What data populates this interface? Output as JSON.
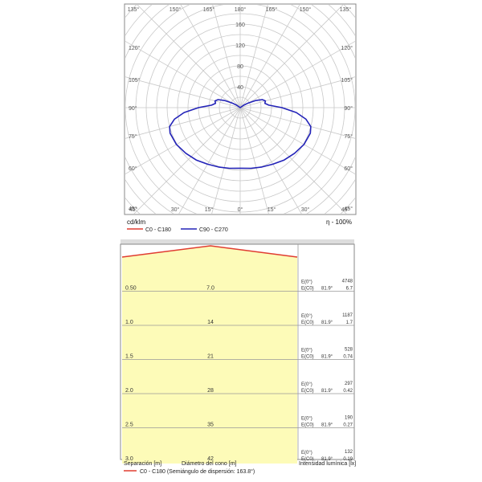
{
  "chart_data": [
    {
      "type": "polar",
      "unit_label": "cd/klm",
      "efficiency_label": "η - 100%",
      "angle_labels_top": [
        "135°",
        "150°",
        "165°",
        "180°",
        "165°",
        "150°",
        "135°"
      ],
      "angle_labels_left": [
        "120°",
        "105°",
        "90°",
        "75°",
        "60°",
        "45°"
      ],
      "angle_labels_right": [
        "120°",
        "105°",
        "90°",
        "75°",
        "60°",
        "45°"
      ],
      "angle_labels_bottom": [
        "45°",
        "30°",
        "15°",
        "0°",
        "15°",
        "30°",
        "45°"
      ],
      "radial_ticks": [
        40,
        80,
        120,
        160
      ],
      "radial_max": 200,
      "radial_tick_labels": [
        "160",
        "120",
        "80",
        "40"
      ],
      "series": [
        {
          "name": "C0 - C180",
          "color": "#e03c31",
          "angles": [
            0,
            10,
            20,
            30,
            40,
            50,
            60,
            70,
            80,
            85,
            90,
            95,
            100,
            105,
            110,
            115,
            120,
            130,
            140,
            150,
            160,
            170,
            180
          ],
          "values": [
            0,
            0,
            0,
            0,
            0,
            0,
            0,
            0,
            0,
            0,
            0,
            0,
            0,
            0,
            0,
            0,
            0,
            0,
            0,
            0,
            0,
            0,
            0
          ]
        },
        {
          "name": "C90 - C270",
          "color": "#2323b8",
          "angles": [
            0,
            10,
            20,
            30,
            40,
            50,
            60,
            70,
            75,
            80,
            85,
            90,
            95,
            100,
            105,
            110,
            115,
            120,
            125,
            130,
            140,
            150,
            160,
            170,
            180
          ],
          "values": [
            116,
            118,
            121,
            125,
            131,
            136,
            141,
            143,
            140,
            128,
            108,
            80,
            55,
            48,
            50,
            45,
            32,
            18,
            8,
            0,
            0,
            0,
            0,
            0,
            0
          ]
        }
      ]
    },
    {
      "type": "table",
      "rows": [
        {
          "separation": "0.50",
          "diameter": "7.0",
          "e0_label": "E(0°)",
          "e0": "4748",
          "ec_label": "E(C0)",
          "ec_angle": "81.9°",
          "ec": "6.7"
        },
        {
          "separation": "1.0",
          "diameter": "14",
          "e0_label": "E(0°)",
          "e0": "1187",
          "ec_label": "E(C0)",
          "ec_angle": "81.9°",
          "ec": "1.7"
        },
        {
          "separation": "1.5",
          "diameter": "21",
          "e0_label": "E(0°)",
          "e0": "528",
          "ec_label": "E(C0)",
          "ec_angle": "81.9°",
          "ec": "0.74"
        },
        {
          "separation": "2.0",
          "diameter": "28",
          "e0_label": "E(0°)",
          "e0": "297",
          "ec_label": "E(C0)",
          "ec_angle": "81.9°",
          "ec": "0.42"
        },
        {
          "separation": "2.5",
          "diameter": "35",
          "e0_label": "E(0°)",
          "e0": "190",
          "ec_label": "E(C0)",
          "ec_angle": "81.9°",
          "ec": "0.27"
        },
        {
          "separation": "3.0",
          "diameter": "42",
          "e0_label": "E(0°)",
          "e0": "132",
          "ec_label": "E(C0)",
          "ec_angle": "81.9°",
          "ec": "0.19"
        }
      ],
      "xlabel_separation": "Separación [m]",
      "xlabel_diameter": "Diámetro del cono [m]",
      "xlabel_intensity": "Intensidad lumínica [lx]",
      "legend_text": "C0 - C180 (Semiángulo de dispersión: 163.8°)",
      "legend_color": "#e03c31",
      "fill_color": "#fdfbb8"
    }
  ]
}
